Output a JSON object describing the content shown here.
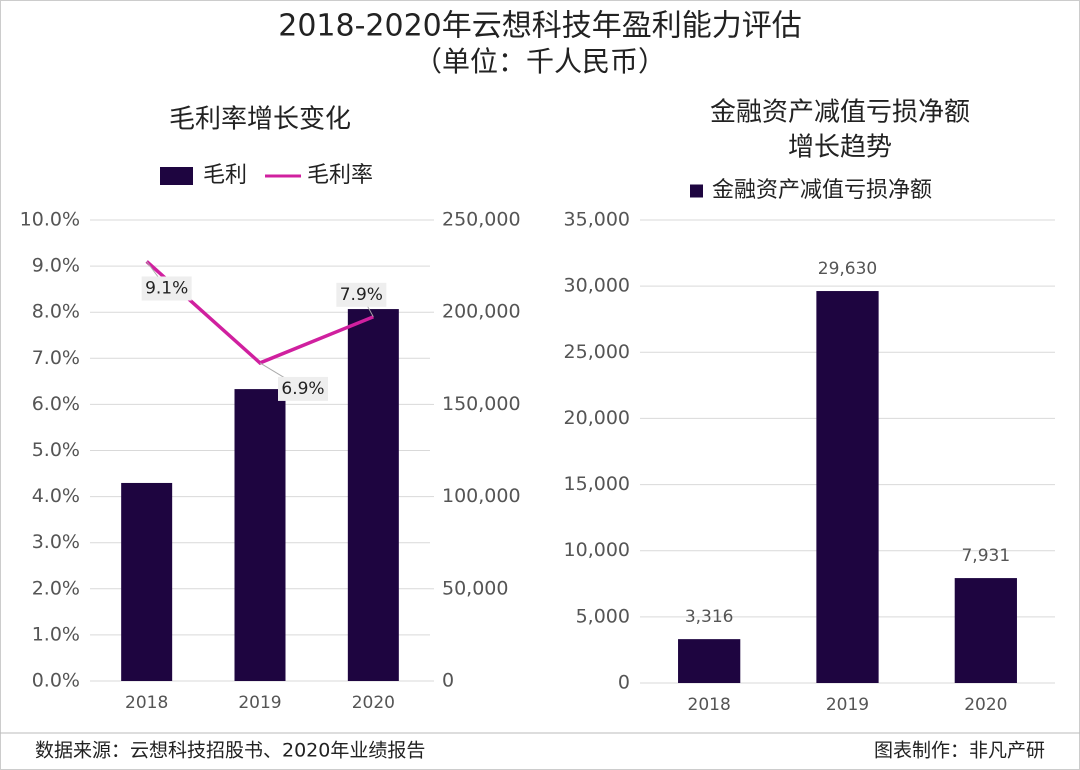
{
  "title": "2018-2020年云想科技年盈利能力评估",
  "subtitle": "（单位：千人民币）",
  "source": "数据来源：云想科技招股书、2020年业绩报告",
  "credit": "图表制作：非凡产研",
  "chart_data": [
    {
      "type": "combo",
      "title": "毛利率增长变化",
      "categories": [
        "2018",
        "2019",
        "2020"
      ],
      "series": [
        {
          "name": "毛利",
          "type": "bar",
          "color": "#1e0540",
          "axis": "y2",
          "values": [
            107400,
            158300,
            201700
          ]
        },
        {
          "name": "毛利率",
          "type": "line",
          "color": "#d0209f",
          "values": [
            9.1,
            6.9,
            7.9
          ],
          "value_labels": [
            "9.1%",
            "6.9%",
            "7.9%"
          ]
        }
      ],
      "ylim": [
        0,
        10
      ],
      "yticks": [
        {
          "value": 0,
          "label": "0.0%"
        },
        {
          "value": 1,
          "label": "1.0%"
        },
        {
          "value": 2,
          "label": "2.0%"
        },
        {
          "value": 3,
          "label": "3.0%"
        },
        {
          "value": 4,
          "label": "4.0%"
        },
        {
          "value": 5,
          "label": "5.0%"
        },
        {
          "value": 6,
          "label": "6.0%"
        },
        {
          "value": 7,
          "label": "7.0%"
        },
        {
          "value": 8,
          "label": "8.0%"
        },
        {
          "value": 9,
          "label": "9.0%"
        },
        {
          "value": 10,
          "label": "10.0%"
        }
      ],
      "y2lim": [
        0,
        250000
      ],
      "y2ticks": [
        0,
        {
          "value": 50000,
          "label": "50,000"
        },
        {
          "value": 100000,
          "label": "100,000"
        },
        {
          "value": 150000,
          "label": "150,000"
        },
        {
          "value": 200000,
          "label": "200,000"
        },
        {
          "value": 250000,
          "label": "250,000"
        }
      ],
      "grid": true,
      "legend": "top"
    },
    {
      "type": "bar",
      "title": [
        "金融资产减值亏损净额",
        "增长趋势"
      ],
      "categories": [
        "2018",
        "2019",
        "2020"
      ],
      "series": [
        {
          "name": "金融资产减值亏损净额",
          "type": "bar",
          "color": "#1e0540",
          "values": [
            3316,
            29630,
            7931
          ],
          "value_labels": [
            "3,316",
            "29,630",
            "7,931"
          ]
        }
      ],
      "ylim": [
        0,
        35000
      ],
      "yticks": [
        0,
        {
          "value": 5000,
          "label": "5,000"
        },
        {
          "value": 10000,
          "label": "10,000"
        },
        {
          "value": 15000,
          "label": "15,000"
        },
        {
          "value": 20000,
          "label": "20,000"
        },
        {
          "value": 25000,
          "label": "25,000"
        },
        {
          "value": 30000,
          "label": "30,000"
        },
        {
          "value": 35000,
          "label": "35,000"
        }
      ],
      "grid": true,
      "legend": "top"
    }
  ]
}
